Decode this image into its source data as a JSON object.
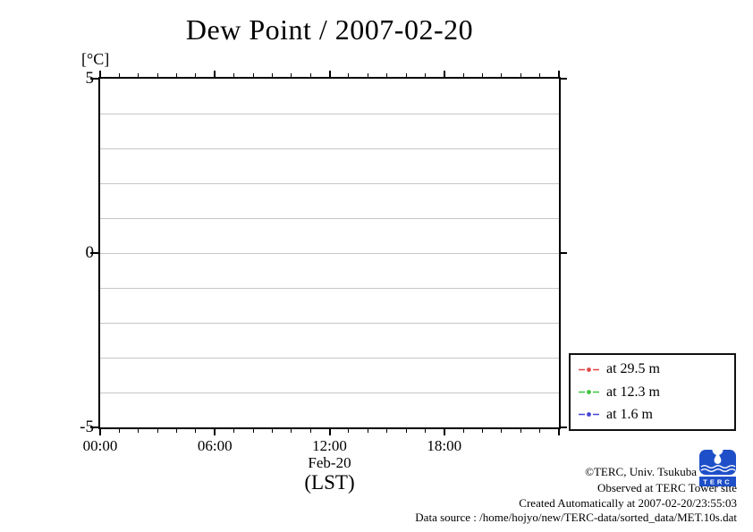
{
  "chart_data": {
    "type": "line",
    "title": "Dew Point / 2007-02-20",
    "ylabel": "[°C]",
    "xlabel": "(LST)",
    "x_date_label": "Feb-20",
    "ylim": [
      -5,
      5
    ],
    "y_major_ticks": [
      {
        "value": 5,
        "label": "5"
      },
      {
        "value": 0,
        "label": "0"
      },
      {
        "value": -5,
        "label": "-5"
      }
    ],
    "y_grid_interval": 1,
    "x_range_hours": [
      0,
      24
    ],
    "x_major_ticks": [
      {
        "hour": 0,
        "label": "00:00"
      },
      {
        "hour": 6,
        "label": "06:00"
      },
      {
        "hour": 12,
        "label": "12:00"
      },
      {
        "hour": 18,
        "label": "18:00"
      }
    ],
    "x_minor_interval_hours": 1,
    "grid": true,
    "grid_color": "#c6c6c6",
    "legend_position": "outside-right-bottom",
    "series": [
      {
        "name": "at 29.5 m",
        "color": "#e04747",
        "values": []
      },
      {
        "name": "at 12.3 m",
        "color": "#3cc43c",
        "values": []
      },
      {
        "name": "at 1.6 m",
        "color": "#4343d8",
        "values": []
      }
    ]
  },
  "footer": {
    "copyright": "©TERC, Univ. Tsukuba",
    "observed": "Observed at TERC Tower site",
    "created": "Created Automatically at 2007-02-20/23:55:03",
    "data_source": "Data source : /home/hojyo/new/TERC-data/sorted_data/MET.10s.dat",
    "logo_text": "TERC",
    "logo_color": "#1e4fc8"
  }
}
